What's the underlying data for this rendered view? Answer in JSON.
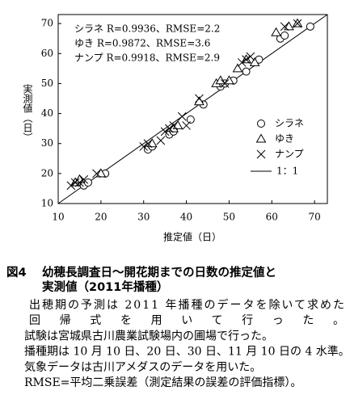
{
  "chart_data": {
    "type": "scatter",
    "x_label": "推定値（日）",
    "y_label": "実測値（日）",
    "xlim": [
      10,
      73
    ],
    "ylim": [
      10,
      73
    ],
    "xticks": [
      10,
      20,
      30,
      40,
      50,
      60,
      70
    ],
    "yticks": [
      10,
      20,
      30,
      40,
      50,
      60,
      70
    ],
    "legend": "lower right",
    "color": "#000000",
    "annotations": [
      "シラネ R=0.9936、RMSE=2.2",
      "ゆき  R=0.9872、RMSE=3.6",
      "ナンプ R=0.9918、RMSE=2.9"
    ],
    "reference_line": {
      "name": "1：1"
    },
    "series": [
      {
        "name": "シラネ",
        "marker": "circle",
        "x": [
          16,
          17,
          21,
          31,
          32,
          36,
          37,
          41,
          44,
          48,
          49,
          51,
          54,
          57,
          62,
          63,
          69
        ],
        "values": [
          16,
          17,
          20,
          28,
          29,
          33,
          34,
          38,
          43,
          49,
          50,
          51,
          54,
          58,
          65,
          66,
          69
        ]
      },
      {
        "name": "ゆき",
        "marker": "triangle",
        "x": [
          14,
          15,
          20,
          32,
          37,
          38,
          43,
          47,
          48,
          50,
          52,
          54,
          56,
          61,
          64,
          66
        ],
        "values": [
          17,
          18,
          20,
          30,
          35,
          36,
          44,
          50,
          51,
          51,
          55,
          58,
          57,
          67,
          69,
          70
        ]
      },
      {
        "name": "ナンプ",
        "marker": "cross",
        "x": [
          13,
          14,
          15,
          16,
          19,
          30,
          31,
          34,
          35,
          36,
          37,
          39,
          40,
          43,
          49,
          53,
          54,
          55,
          63,
          66
        ],
        "values": [
          16,
          17,
          17,
          18,
          20,
          29,
          30,
          31,
          34,
          35,
          36,
          39,
          36,
          45,
          50,
          57,
          58,
          59,
          69,
          70
        ]
      }
    ]
  },
  "caption": {
    "label": "図4",
    "title_lines": [
      "幼穂長調査日～開花期までの日数の推定値と",
      "実測値（2011年播種）"
    ],
    "body_lines": [
      "出穂期の予測は 2011 年播種のデータを除いて求めた",
      "回帰式を用いて行った。",
      "試験は宮城県古川農業試験場内の圃場で行った。",
      "播種期は 10 月 10 日、20 日、30 日、11 月 10 日の 4 水準。",
      "気象データは古川アメダスのデータを用いた。",
      "RMSE=平均二乗誤差（測定結果の誤差の評価指標）。"
    ]
  }
}
